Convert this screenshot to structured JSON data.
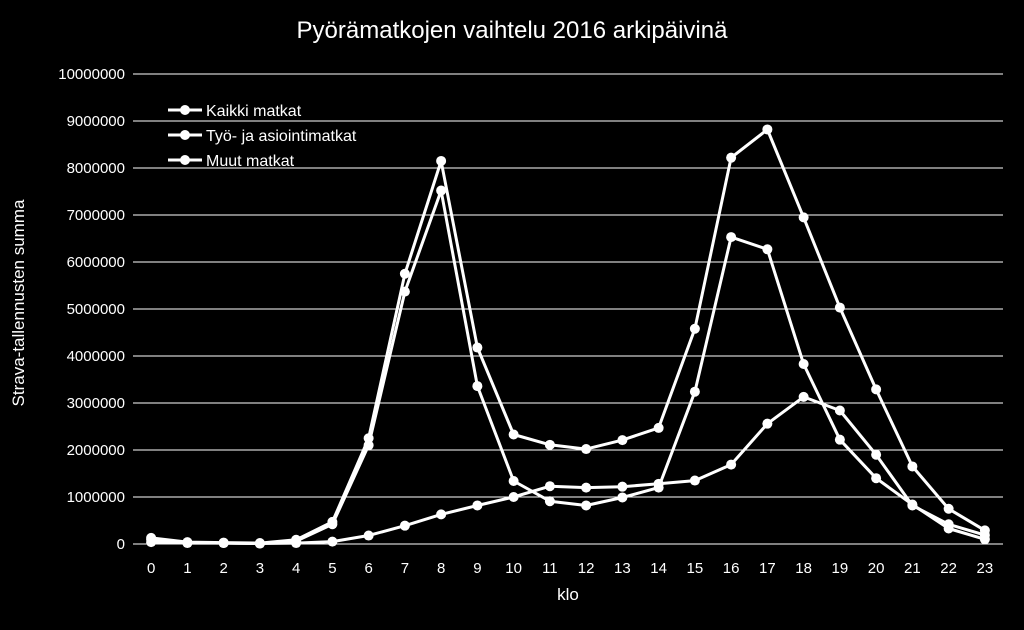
{
  "chart_data": {
    "type": "line",
    "title": "Pyörämatkojen vaihtelu 2016 arkipäivinä",
    "xlabel": "klo",
    "ylabel": "Strava-tallennusten  summa",
    "categories": [
      "0",
      "1",
      "2",
      "3",
      "4",
      "5",
      "6",
      "7",
      "8",
      "9",
      "10",
      "11",
      "12",
      "13",
      "14",
      "15",
      "16",
      "17",
      "18",
      "19",
      "20",
      "21",
      "22",
      "23"
    ],
    "ylim": [
      0,
      10000000
    ],
    "yticks": [
      "0",
      "1000000",
      "2000000",
      "3000000",
      "4000000",
      "5000000",
      "6000000",
      "7000000",
      "8000000",
      "9000000",
      "10000000"
    ],
    "grid": true,
    "legend_position": "top-left",
    "series": [
      {
        "name": "Kaikki matkat",
        "values": [
          130000,
          40000,
          30000,
          20000,
          90000,
          470000,
          2250000,
          5750000,
          8150000,
          4180000,
          2330000,
          2110000,
          2020000,
          2210000,
          2470000,
          4580000,
          8220000,
          8820000,
          6950000,
          5030000,
          3290000,
          1650000,
          750000,
          290000
        ]
      },
      {
        "name": "Työ- ja asiointimatkat",
        "values": [
          90000,
          30000,
          20000,
          10000,
          60000,
          420000,
          2100000,
          5370000,
          7520000,
          3360000,
          1340000,
          910000,
          820000,
          990000,
          1200000,
          3240000,
          6530000,
          6270000,
          3830000,
          2220000,
          1400000,
          840000,
          330000,
          100000
        ]
      },
      {
        "name": "Muut matkat",
        "values": [
          40000,
          20000,
          20000,
          10000,
          20000,
          50000,
          180000,
          390000,
          630000,
          820000,
          1000000,
          1230000,
          1200000,
          1220000,
          1280000,
          1350000,
          1690000,
          2560000,
          3130000,
          2840000,
          1900000,
          820000,
          420000,
          190000
        ]
      }
    ]
  }
}
